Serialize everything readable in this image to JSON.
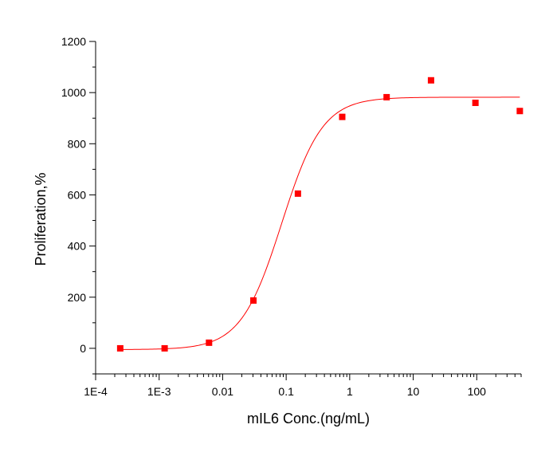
{
  "chart_data": {
    "type": "scatter",
    "xlabel": "mIL6 Conc.(ng/mL)",
    "ylabel": "Proliferation,%",
    "x_scale": "log",
    "xlim": [
      0.0001,
      500
    ],
    "ylim": [
      -100,
      1200
    ],
    "x_ticks": [
      0.0001,
      0.001,
      0.01,
      0.1,
      1,
      10,
      100
    ],
    "x_tick_labels": [
      "1E-4",
      "1E-3",
      "0.01",
      "0.1",
      "1",
      "10",
      "100"
    ],
    "y_ticks": [
      0,
      200,
      400,
      600,
      800,
      1000,
      1200
    ],
    "y_tick_labels": [
      "0",
      "200",
      "400",
      "600",
      "800",
      "1000",
      "1200"
    ],
    "grid": false,
    "series": [
      {
        "kind": "points",
        "marker": "square",
        "color": "#ff0000",
        "x": [
          0.000244,
          0.00122,
          0.0061,
          0.0305,
          0.153,
          0.763,
          3.815,
          19.07,
          95.4,
          477
        ],
        "y": [
          0,
          0,
          22,
          187,
          605,
          905,
          982,
          1048,
          960,
          928
        ]
      },
      {
        "kind": "fit-curve",
        "model": "four-parameter logistic",
        "color": "#ff0000",
        "bottom": -5,
        "top": 982,
        "ec50": 0.085,
        "hill": 1.35,
        "x_range": [
          0.000244,
          477
        ]
      }
    ]
  }
}
